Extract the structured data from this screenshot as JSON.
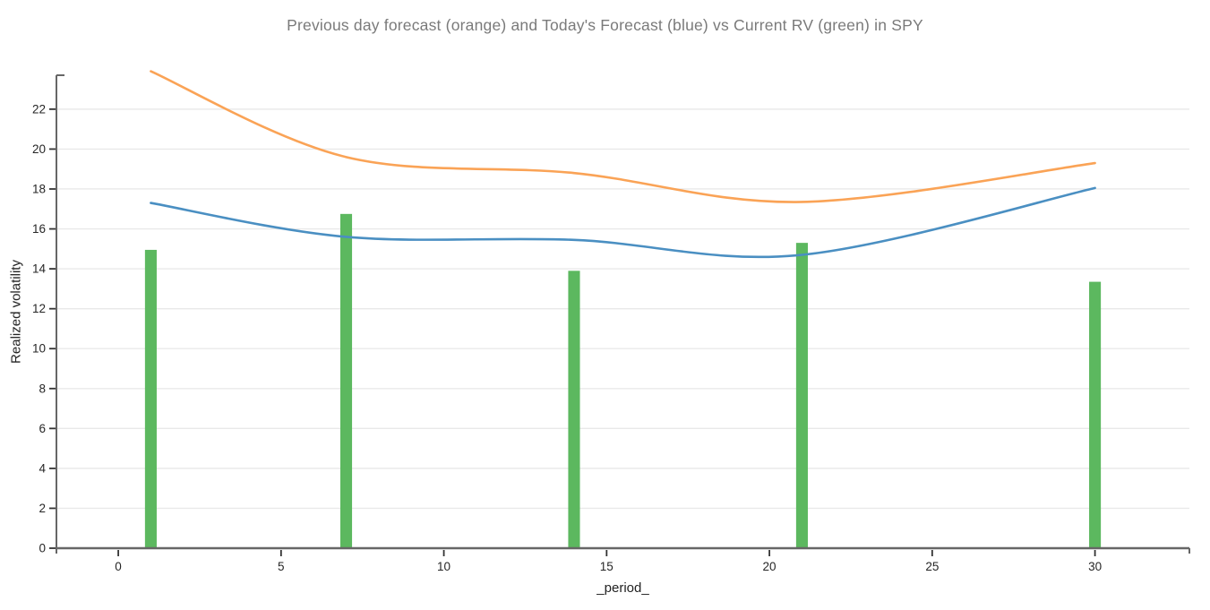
{
  "window": {
    "background": "#ffffff"
  },
  "chart_data": {
    "type": "line+bar",
    "title": "Previous day forecast (orange) and Today's Forecast (blue) vs Current RV (green) in SPY",
    "xlabel": "_period_",
    "ylabel": "Realized volatility",
    "x": [
      1,
      7,
      14,
      21,
      30
    ],
    "series": [
      {
        "name": "Previous day forecast",
        "type": "line",
        "color": "#faa356",
        "line_width": 2.6,
        "values": [
          23.9,
          19.6,
          18.8,
          17.35,
          19.3
        ]
      },
      {
        "name": "Today's Forecast",
        "type": "line",
        "color": "#4a8fc2",
        "line_width": 2.6,
        "values": [
          17.3,
          15.6,
          15.45,
          14.7,
          18.05
        ]
      },
      {
        "name": "Current RV",
        "type": "bar",
        "color": "#5cb85f",
        "bar_width": 0.36,
        "values": [
          14.95,
          16.75,
          13.9,
          15.3,
          13.35
        ]
      }
    ],
    "xlim": [
      -1.9,
      32.9
    ],
    "ylim": [
      0,
      23.7
    ],
    "x_ticks": [
      0,
      5,
      10,
      15,
      20,
      25,
      30
    ],
    "y_ticks": [
      0,
      2,
      4,
      6,
      8,
      10,
      12,
      14,
      16,
      18,
      20,
      22
    ],
    "grid": "horizontal-only",
    "legend": "none",
    "colors": {
      "title_text": "#7a7a7a",
      "axis_line": "#666666",
      "tick_mark": "#333333",
      "tick_label": "#262626",
      "axis_label": "#222222",
      "gridline": "#e9e9e9",
      "background": "#ffffff"
    }
  }
}
